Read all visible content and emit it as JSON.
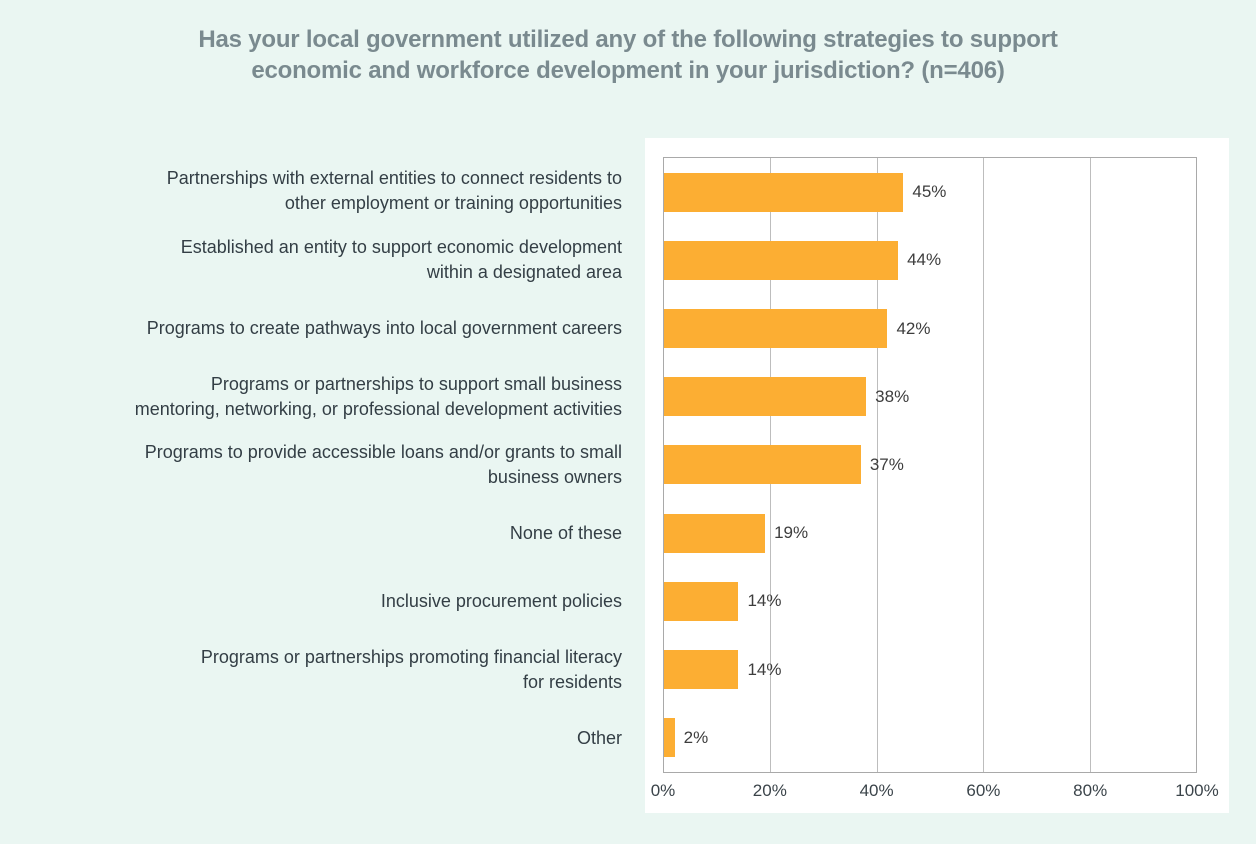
{
  "page": {
    "background_color": "#eaf6f2",
    "panel_color": "#ffffff",
    "title_color": "#7a8a8f"
  },
  "chart_data": {
    "type": "bar",
    "orientation": "horizontal",
    "title": "Has your local government utilized any of the following strategies to support\neconomic and workforce development in your jurisdiction? (n=406)",
    "categories": [
      "Partnerships with external entities to connect residents to\nother employment or training opportunities",
      "Established an entity to support economic development\nwithin a designated area",
      "Programs to create pathways into local government careers",
      "Programs or partnerships to support small business\nmentoring, networking, or professional development activities",
      "Programs to provide accessible loans and/or grants to small\nbusiness owners",
      "None of these",
      "Inclusive procurement policies",
      "Programs or partnerships promoting financial literacy\nfor residents",
      "Other"
    ],
    "values": [
      45,
      44,
      42,
      38,
      37,
      19,
      14,
      14,
      2
    ],
    "value_labels": [
      "45%",
      "44%",
      "42%",
      "38%",
      "37%",
      "19%",
      "14%",
      "14%",
      "2%"
    ],
    "x_ticks": [
      "0%",
      "20%",
      "40%",
      "60%",
      "80%",
      "100%"
    ],
    "xlim": [
      0,
      100
    ],
    "bar_color": "#fcae33",
    "grid": true,
    "gridline_color": "#bdbdbd",
    "legend": false
  }
}
